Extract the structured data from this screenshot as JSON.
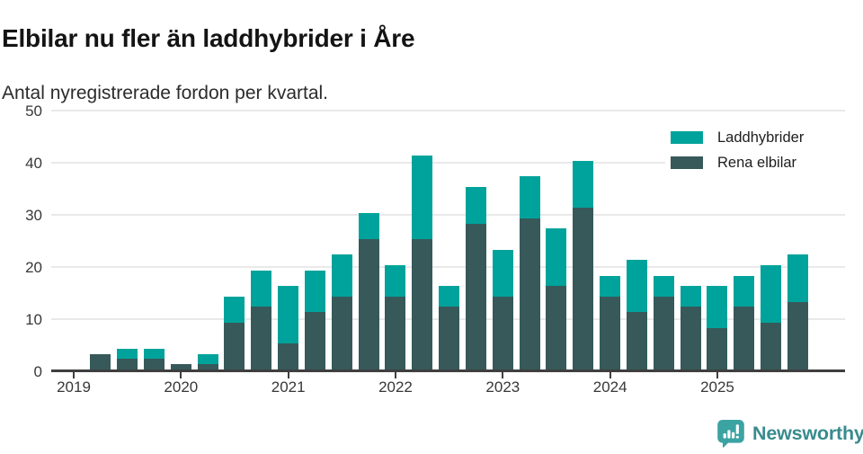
{
  "header": {
    "title": "Elbilar nu fler än laddhybrider i Åre",
    "subtitle": "Antal nyregistrerade fordon per kvartal."
  },
  "legend": [
    {
      "label": "Laddhybrider",
      "color": "#00a39b"
    },
    {
      "label": "Rena elbilar",
      "color": "#37595a"
    }
  ],
  "footer": {
    "brand": "Newsworthy"
  },
  "colors": {
    "laddhybrider": "#00a39b",
    "rena_elbilar": "#37595a",
    "gridline": "#e9e9e9",
    "axis": "#3f3f3f",
    "logo_icon": "#3ca3a3",
    "logo_text": "#398b8e"
  },
  "chart_data": {
    "type": "bar",
    "stacked": true,
    "title": "Elbilar nu fler än laddhybrider i Åre",
    "subtitle": "Antal nyregistrerade fordon per kvartal.",
    "xlabel": "",
    "ylabel": "Antal nyregistrerade fordon",
    "ylim": [
      0,
      50
    ],
    "yticks": [
      0,
      10,
      20,
      30,
      40,
      50
    ],
    "grid": true,
    "legend_position": "top-right",
    "x": [
      "2019 Q1",
      "2019 Q2",
      "2019 Q3",
      "2019 Q4",
      "2020 Q1",
      "2020 Q2",
      "2020 Q3",
      "2020 Q4",
      "2021 Q1",
      "2021 Q2",
      "2021 Q3",
      "2021 Q4",
      "2022 Q1",
      "2022 Q2",
      "2022 Q3",
      "2022 Q4",
      "2023 Q1",
      "2023 Q2",
      "2023 Q3",
      "2023 Q4",
      "2024 Q1",
      "2024 Q2",
      "2024 Q3",
      "2024 Q4",
      "2025 Q1",
      "2025 Q2",
      "2025 Q3",
      "2025 Q4"
    ],
    "xticks": [
      "2019",
      "2020",
      "2021",
      "2022",
      "2023",
      "2024",
      "2025"
    ],
    "series": [
      {
        "name": "Rena elbilar",
        "color": "#37595a",
        "values": [
          0,
          3,
          2,
          2,
          1,
          1,
          9,
          12,
          5,
          11,
          14,
          25,
          14,
          25,
          12,
          28,
          14,
          29,
          16,
          31,
          14,
          11,
          14,
          12,
          8,
          12,
          9,
          13
        ]
      },
      {
        "name": "Laddhybrider",
        "color": "#00a39b",
        "values": [
          0,
          0,
          2,
          2,
          0,
          2,
          5,
          7,
          11,
          8,
          8,
          5,
          6,
          16,
          4,
          7,
          9,
          8,
          11,
          9,
          4,
          10,
          4,
          4,
          8,
          6,
          11,
          9
        ]
      }
    ],
    "totals": [
      0,
      3,
      4,
      4,
      1,
      3,
      14,
      19,
      16,
      19,
      22,
      30,
      20,
      41,
      16,
      35,
      23,
      37,
      27,
      40,
      18,
      21,
      18,
      16,
      16,
      18,
      20,
      22
    ]
  }
}
